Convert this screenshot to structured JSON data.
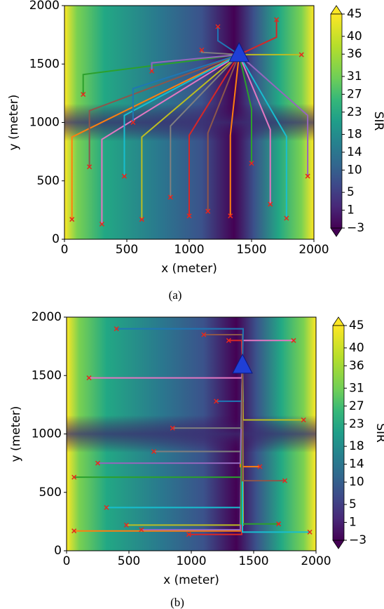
{
  "chart_data": [
    {
      "type": "contour",
      "caption": "(a)",
      "xlabel": "x (meter)",
      "ylabel": "y (meter)",
      "xlim": [
        0,
        2000
      ],
      "ylim": [
        0,
        2000
      ],
      "xticks": [
        0,
        500,
        1000,
        1500,
        2000
      ],
      "yticks": [
        0,
        500,
        1000,
        1500,
        2000
      ],
      "colorbar_label": "SIR",
      "clim": [
        -3,
        45
      ],
      "colorbar_ticks": [
        {
          "value": -3,
          "label": "−3"
        },
        1,
        5,
        10,
        14,
        18,
        23,
        27,
        31,
        36,
        40,
        45
      ],
      "base_station": {
        "x": 1400,
        "y": 1580,
        "color": "#1f3fd6"
      },
      "users": {
        "color": "#e8261c",
        "x": [
          60,
          150,
          300,
          480,
          620,
          700,
          850,
          1000,
          1150,
          1230,
          1330,
          1500,
          1650,
          1780,
          1900,
          1950,
          1100,
          1700,
          200,
          550
        ],
        "y": [
          170,
          1240,
          130,
          540,
          170,
          1440,
          360,
          200,
          240,
          1820,
          200,
          650,
          300,
          180,
          1580,
          540,
          1620,
          1880,
          620,
          1000
        ]
      }
    },
    {
      "type": "contour",
      "caption": "(b)",
      "xlabel": "x (meter)",
      "ylabel": "y (meter)",
      "xlim": [
        0,
        2000
      ],
      "ylim": [
        0,
        2000
      ],
      "xticks": [
        0,
        500,
        1000,
        1500,
        2000
      ],
      "yticks": [
        0,
        500,
        1000,
        1500,
        2000
      ],
      "colorbar_label": "SIR",
      "clim": [
        -3,
        45
      ],
      "colorbar_ticks": [
        {
          "value": -3,
          "label": "−3"
        },
        1,
        5,
        10,
        14,
        18,
        23,
        27,
        31,
        36,
        40,
        45
      ],
      "base_station": {
        "x": 1410,
        "y": 1580,
        "color": "#1f3fd6"
      },
      "users": {
        "color": "#e8261c",
        "x": [
          60,
          60,
          180,
          320,
          480,
          600,
          700,
          980,
          1100,
          1200,
          1550,
          1700,
          1820,
          1950,
          1900,
          250,
          850,
          1300,
          1750,
          400
        ],
        "y": [
          170,
          630,
          1480,
          370,
          220,
          180,
          850,
          140,
          1850,
          1280,
          720,
          230,
          1800,
          160,
          1120,
          750,
          1050,
          1800,
          600,
          1900
        ]
      }
    }
  ]
}
